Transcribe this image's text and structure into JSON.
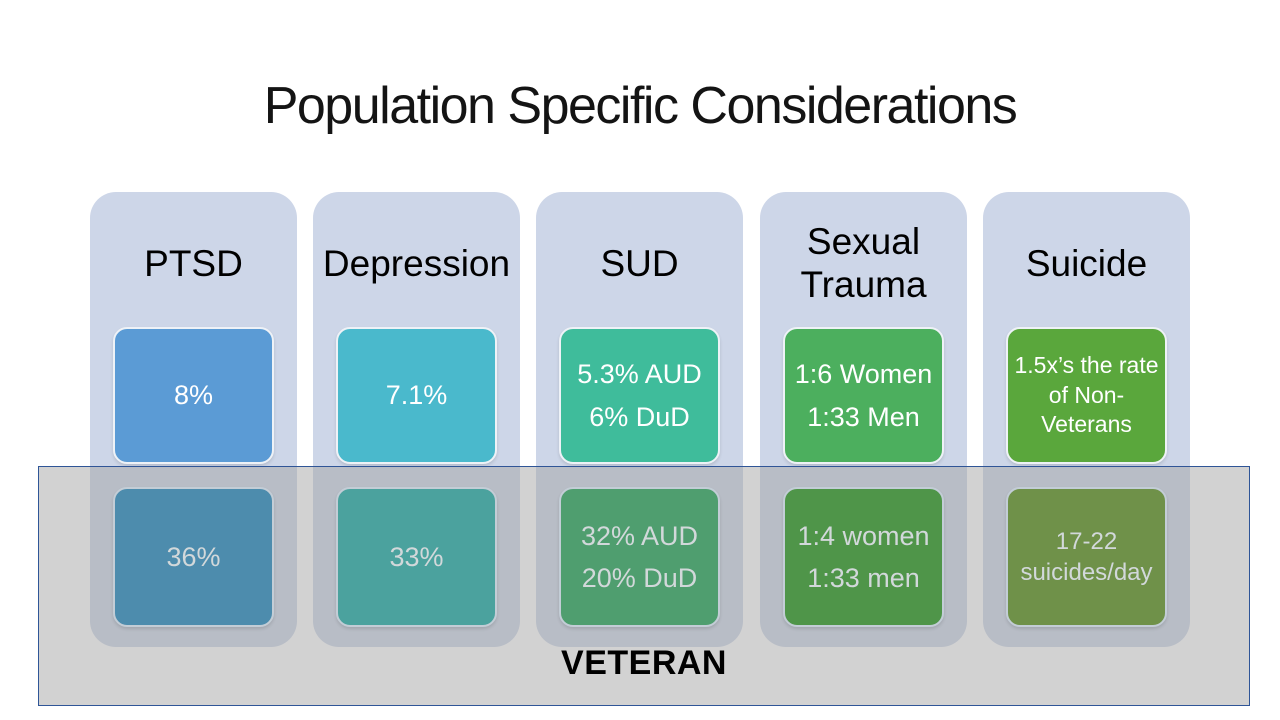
{
  "slide": {
    "title": "Population Specific Considerations",
    "veteran_label": "VETERAN"
  },
  "style": {
    "column_bg": "#cdd6e8",
    "band_fill": "rgba(161,161,161,0.48)",
    "band_border": "#2f5597",
    "general_text": "#ffffff",
    "veteran_text": "#d2d8da"
  },
  "columns": [
    {
      "header": "PTSD",
      "general": {
        "lines": [
          "8%"
        ],
        "color": "#5b9bd5",
        "small": false
      },
      "veteran": {
        "lines": [
          "36%"
        ],
        "color": "#4d8cad",
        "small": false
      }
    },
    {
      "header": "Depression",
      "general": {
        "lines": [
          "7.1%"
        ],
        "color": "#4ab9cc",
        "small": false
      },
      "veteran": {
        "lines": [
          "33%"
        ],
        "color": "#4ba29e",
        "small": false
      }
    },
    {
      "header": "SUD",
      "general": {
        "lines": [
          "5.3% AUD",
          "6% DuD"
        ],
        "color": "#3fbc9b",
        "small": false
      },
      "veteran": {
        "lines": [
          "32% AUD",
          "20% DuD"
        ],
        "color": "#4f9e6f",
        "small": false
      }
    },
    {
      "header": "Sexual Trauma",
      "general": {
        "lines": [
          "1:6 Women",
          "1:33 Men"
        ],
        "color": "#4caf5e",
        "small": false
      },
      "veteran": {
        "lines": [
          "1:4 women",
          "1:33 men"
        ],
        "color": "#4f9549",
        "small": false
      }
    },
    {
      "header": "Suicide",
      "general": {
        "lines": [
          "1.5x’s the rate of Non-Veterans"
        ],
        "color": "#5aa73c",
        "small": true
      },
      "veteran": {
        "lines": [
          "17-22 suicides/day"
        ],
        "color": "#6f9149",
        "small": true
      }
    }
  ],
  "layout": {
    "column_lefts": [
      90,
      313,
      536,
      760,
      983
    ]
  }
}
